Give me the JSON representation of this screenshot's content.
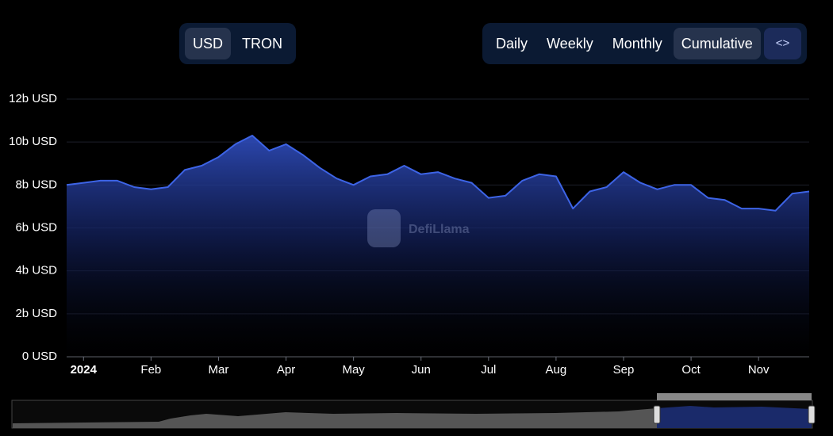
{
  "controls": {
    "currency": [
      "USD",
      "TRON"
    ],
    "periods": [
      "Daily",
      "Weekly",
      "Monthly",
      "Cumulative"
    ],
    "embed": "<>"
  },
  "watermark": "DefiLlama",
  "chart_data": {
    "type": "line",
    "categories": [
      null,
      "2024",
      null,
      null,
      null,
      "Feb",
      null,
      null,
      null,
      "Mar",
      null,
      null,
      null,
      "Apr",
      null,
      null,
      null,
      "May",
      null,
      null,
      null,
      "Jun",
      null,
      null,
      null,
      "Jul",
      null,
      null,
      null,
      "Aug",
      null,
      null,
      null,
      "Sep",
      null,
      null,
      null,
      "Oct",
      null,
      null,
      null,
      "Nov",
      null,
      null,
      null
    ],
    "values": [
      8.0,
      8.1,
      8.2,
      8.2,
      7.9,
      7.8,
      7.9,
      8.7,
      8.9,
      9.3,
      9.9,
      10.3,
      9.6,
      9.9,
      9.4,
      8.8,
      8.3,
      8.0,
      8.4,
      8.5,
      8.9,
      8.5,
      8.6,
      8.3,
      8.1,
      7.4,
      7.5,
      8.2,
      8.5,
      8.4,
      6.9,
      7.7,
      7.9,
      8.6,
      8.1,
      7.8,
      8.0,
      8.0,
      7.4,
      7.3,
      6.9,
      6.9,
      6.8,
      7.6,
      7.7
    ],
    "color": "#3d64e6",
    "ylim": [
      0,
      12
    ],
    "yticks": [
      {
        "value": 0,
        "label": "0 USD"
      },
      {
        "value": 2,
        "label": "2b USD"
      },
      {
        "value": 4,
        "label": "4b USD"
      },
      {
        "value": 6,
        "label": "6b USD"
      },
      {
        "value": 8,
        "label": "8b USD"
      },
      {
        "value": 10,
        "label": "10b USD"
      },
      {
        "value": 12,
        "label": "12b USD"
      }
    ],
    "grid": true
  }
}
